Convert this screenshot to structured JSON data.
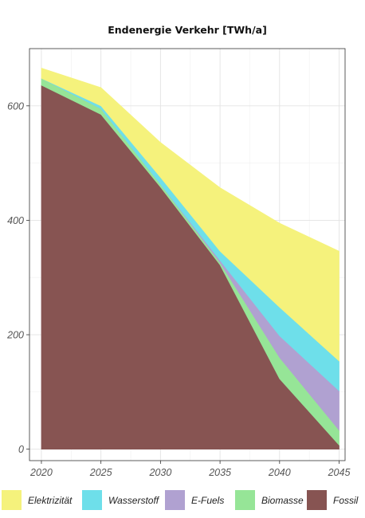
{
  "chart_data": {
    "type": "area",
    "stacked": true,
    "title": "Endenergie Verkehr [TWh/a]",
    "xlabel": "",
    "ylabel": "",
    "x": [
      2020,
      2025,
      2030,
      2035,
      2040,
      2045
    ],
    "xlim": [
      2019,
      2045.5
    ],
    "ylim": [
      -20,
      700
    ],
    "xticks": [
      2020,
      2025,
      2030,
      2035,
      2040,
      2045
    ],
    "yticks": [
      0,
      200,
      400,
      600
    ],
    "grid": true,
    "legend_position": "bottom",
    "series": [
      {
        "name": "Fossil",
        "color": "#875452",
        "values": [
          636,
          585,
          458,
          322,
          123,
          7
        ]
      },
      {
        "name": "Biomasse",
        "color": "#96e597",
        "values": [
          12,
          10,
          5,
          4,
          37,
          26
        ]
      },
      {
        "name": "E-Fuels",
        "color": "#b0a1d1",
        "values": [
          0,
          0,
          0,
          4,
          38,
          69
        ]
      },
      {
        "name": "Wasserstoff",
        "color": "#6edfea",
        "values": [
          0,
          5,
          12,
          16,
          50,
          52
        ]
      },
      {
        "name": "Elektrizität",
        "color": "#f5f27c",
        "values": [
          18,
          32,
          61,
          111,
          147,
          192
        ]
      }
    ],
    "legend_order": [
      "Elektrizität",
      "Wasserstoff",
      "E-Fuels",
      "Biomasse",
      "Fossil"
    ]
  }
}
